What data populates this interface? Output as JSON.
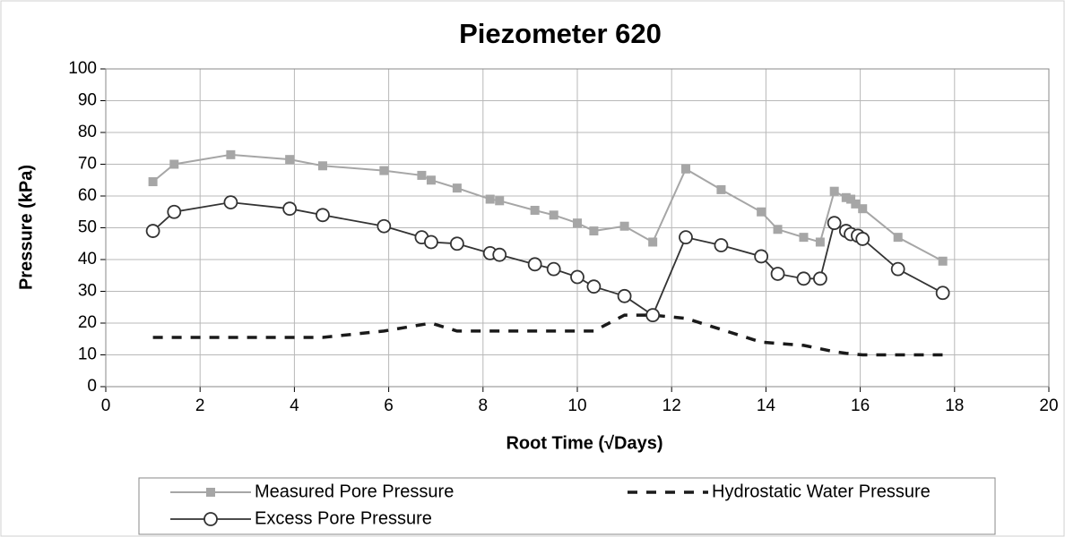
{
  "chart_data": {
    "type": "line",
    "title": "Piezometer 620",
    "xlabel": "Root Time (√Days)",
    "ylabel": "Pressure (kPa)",
    "xlim": [
      0,
      20
    ],
    "xticks": [
      0,
      2,
      4,
      6,
      8,
      10,
      12,
      14,
      16,
      18,
      20
    ],
    "ylim": [
      0,
      100
    ],
    "yticks": [
      0,
      10,
      20,
      30,
      40,
      50,
      60,
      70,
      80,
      90,
      100
    ],
    "grid": true,
    "legend": "bottom",
    "series": [
      {
        "name": "Measured Pore Pressure",
        "color": "#a6a6a6",
        "marker": "square",
        "dash": false,
        "x": [
          1.0,
          1.45,
          2.65,
          3.9,
          4.6,
          5.9,
          6.7,
          6.9,
          7.45,
          8.15,
          8.35,
          9.1,
          9.5,
          10.0,
          10.35,
          11.0,
          11.6,
          12.3,
          13.05,
          13.9,
          14.25,
          14.8,
          15.15,
          15.45,
          15.7,
          15.8,
          15.9,
          16.05,
          16.8,
          17.75
        ],
        "values": [
          64.5,
          70,
          73,
          71.5,
          69.5,
          68,
          66.5,
          65,
          62.5,
          59,
          58.5,
          55.5,
          54,
          51.5,
          49,
          50.5,
          45.5,
          68.5,
          62,
          55,
          49.5,
          47,
          45.5,
          61.5,
          59.5,
          59,
          57.5,
          56,
          47,
          39.5
        ]
      },
      {
        "name": "Hydrostatic Water Pressure",
        "color": "#1a1a1a",
        "marker": "none",
        "dash": true,
        "x": [
          1.0,
          2.65,
          4.6,
          5.9,
          6.9,
          7.45,
          10.35,
          11.0,
          11.6,
          12.3,
          13.05,
          13.9,
          14.8,
          15.45,
          15.7,
          16.05,
          17.75
        ],
        "values": [
          15.5,
          15.5,
          15.5,
          17.5,
          20,
          17.5,
          17.5,
          22.5,
          22.5,
          21.5,
          18,
          14,
          13,
          11,
          10.5,
          10,
          10
        ]
      },
      {
        "name": "Excess Pore Pressure",
        "color": "#333333",
        "marker": "circle",
        "dash": false,
        "x": [
          1.0,
          1.45,
          2.65,
          3.9,
          4.6,
          5.9,
          6.7,
          6.9,
          7.45,
          8.15,
          8.35,
          9.1,
          9.5,
          10.0,
          10.35,
          11.0,
          11.6,
          12.3,
          13.05,
          13.9,
          14.25,
          14.8,
          15.15,
          15.45,
          15.7,
          15.8,
          15.95,
          16.05,
          16.8,
          17.75
        ],
        "values": [
          49,
          55,
          58,
          56,
          54,
          50.5,
          47,
          45.5,
          45,
          42,
          41.5,
          38.5,
          37,
          34.5,
          31.5,
          28.5,
          22.5,
          47,
          44.5,
          41,
          35.5,
          34,
          34,
          51.5,
          49,
          48,
          47.5,
          46.5,
          37,
          29.5
        ]
      }
    ]
  }
}
